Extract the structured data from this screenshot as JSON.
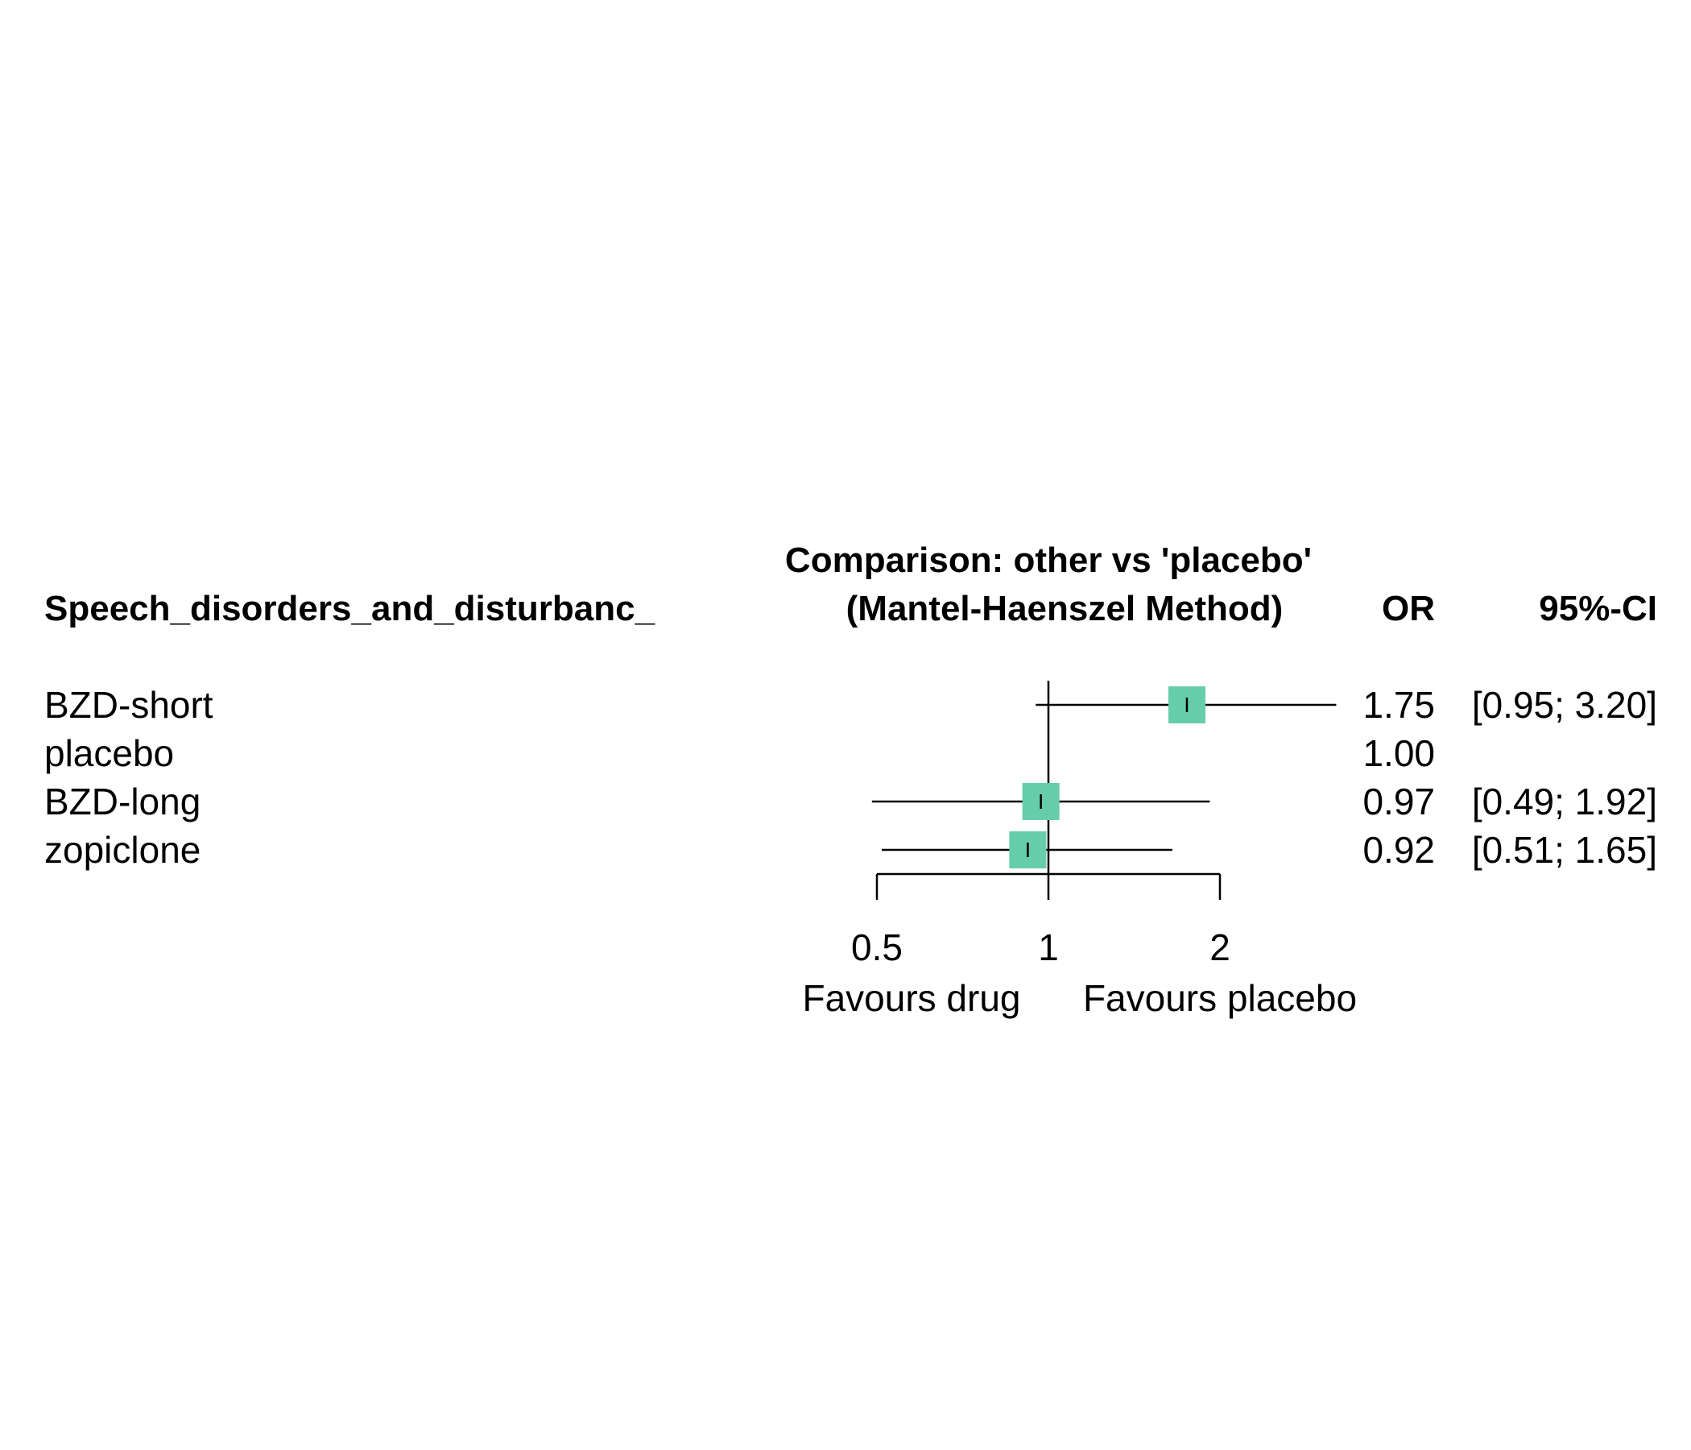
{
  "chart_data": {
    "type": "forest",
    "header": {
      "outcome_label": "Speech_disorders_and_disturbanc_",
      "comparison_line1": "Comparison: other vs 'placebo'",
      "comparison_line2": "(Mantel-Haenszel Method)",
      "or_label": "OR",
      "ci_label": "95%-CI"
    },
    "rows": [
      {
        "label": "BZD-short",
        "or": 1.75,
        "lower": 0.95,
        "upper": 3.2,
        "or_text": "1.75",
        "ci_text": "[0.95; 3.20]",
        "is_reference": false
      },
      {
        "label": "placebo",
        "or": 1.0,
        "lower": null,
        "upper": null,
        "or_text": "1.00",
        "ci_text": "",
        "is_reference": true
      },
      {
        "label": "BZD-long",
        "or": 0.97,
        "lower": 0.49,
        "upper": 1.92,
        "or_text": "0.97",
        "ci_text": "[0.49; 1.92]",
        "is_reference": false
      },
      {
        "label": "zopiclone",
        "or": 0.92,
        "lower": 0.51,
        "upper": 1.65,
        "or_text": "0.92",
        "ci_text": "[0.51; 1.65]",
        "is_reference": false
      }
    ],
    "x_scale": "log",
    "x_ticks": [
      0.5,
      1,
      2
    ],
    "x_tick_labels": [
      "0.5",
      "1",
      "2"
    ],
    "reference_value": 1,
    "left_axis_label": "Favours drug",
    "right_axis_label": "Favours placebo",
    "marker_color": "#66CDAA"
  }
}
